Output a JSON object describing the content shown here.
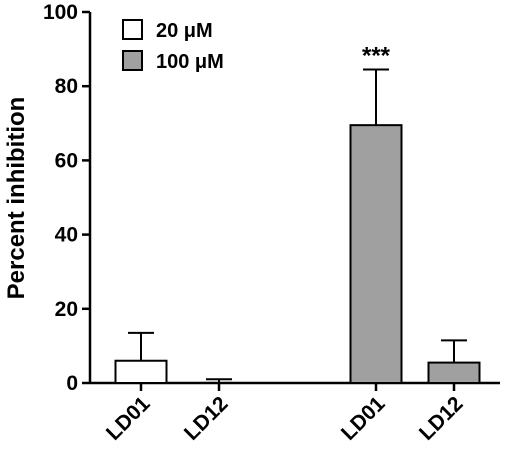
{
  "chart_data": {
    "type": "bar",
    "title": "",
    "xlabel": "",
    "ylabel": "Percent inhibition",
    "ylim": [
      0,
      100
    ],
    "yticks": [
      0,
      20,
      40,
      60,
      80,
      100
    ],
    "grid": false,
    "legend_position": "top-left",
    "categories": [
      "LD01",
      "LD12",
      "LD01",
      "LD12"
    ],
    "series": [
      {
        "name": "20 μM",
        "color": "#ffffff",
        "values": [
          6,
          0,
          null,
          null
        ],
        "errors": [
          7.5,
          1,
          null,
          null
        ]
      },
      {
        "name": "100 μM",
        "color": "#a0a0a0",
        "values": [
          null,
          null,
          69.5,
          5.5
        ],
        "errors": [
          null,
          null,
          15,
          6
        ]
      }
    ],
    "annotations": [
      {
        "text": "***",
        "category_index": 2
      }
    ]
  }
}
